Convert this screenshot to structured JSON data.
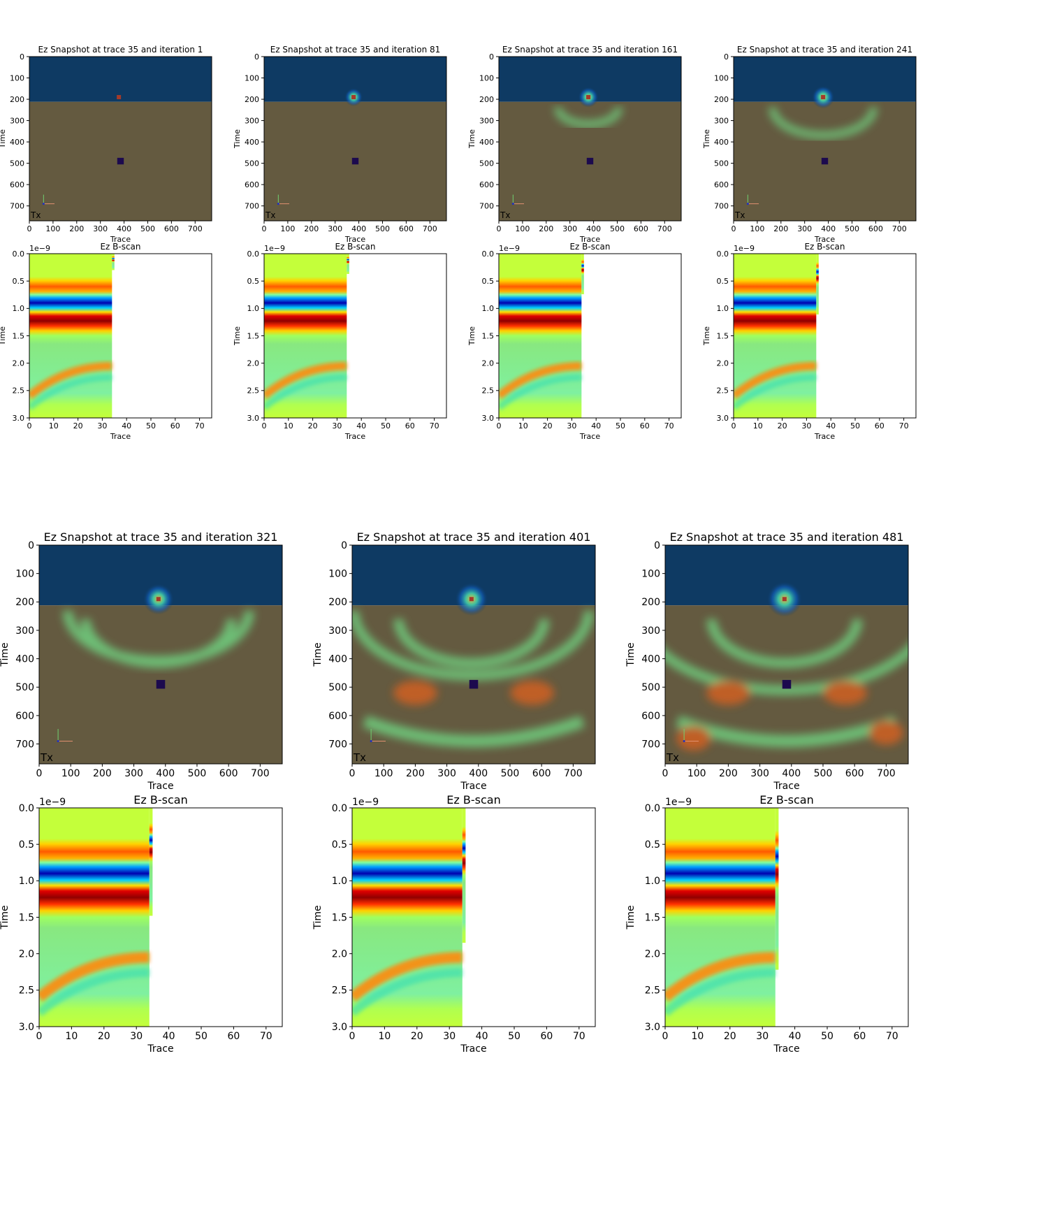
{
  "colors": {
    "air": "#0e3a63",
    "soil": "#645a40",
    "target": "#1c0a4e",
    "bscan_background": "#c4ff3a",
    "source_marker": "#a33a2a",
    "tx_label": "#dd1010"
  },
  "labels": {
    "snapshot_xlabel": "Trace",
    "snapshot_ylabel": "Time",
    "bscan_title": "Ez B-scan",
    "bscan_xlabel": "Trace",
    "bscan_ylabel": "Time",
    "bscan_exponent": "1e−9",
    "tx": "Tx"
  },
  "chart_data": [
    {
      "type": "heatmap",
      "panel": "snapshot",
      "title": "Ez Snapshot at trace 35 and iteration 1",
      "iteration": 1,
      "xlabel": "Trace",
      "ylabel": "Time",
      "xlim": [
        0,
        770
      ],
      "ylim": [
        770,
        0
      ],
      "xticks": [
        0,
        100,
        200,
        300,
        400,
        500,
        600,
        700
      ],
      "yticks": [
        0,
        100,
        200,
        300,
        400,
        500,
        600,
        700
      ],
      "air_ground_interface": 212,
      "target_center": [
        385,
        490
      ],
      "source_position": [
        378,
        190
      ]
    },
    {
      "type": "heatmap",
      "panel": "snapshot",
      "title": "Ez Snapshot at trace 35 and iteration 81",
      "iteration": 81,
      "xlabel": "Trace",
      "ylabel": "Time",
      "xlim": [
        0,
        770
      ],
      "ylim": [
        770,
        0
      ],
      "xticks": [
        0,
        100,
        200,
        300,
        400,
        500,
        600,
        700
      ],
      "yticks": [
        0,
        100,
        200,
        300,
        400,
        500,
        600,
        700
      ],
      "air_ground_interface": 212,
      "target_center": [
        385,
        490
      ],
      "source_position": [
        378,
        190
      ]
    },
    {
      "type": "heatmap",
      "panel": "snapshot",
      "title": "Ez Snapshot at trace 35 and iteration 161",
      "iteration": 161,
      "xlabel": "Trace",
      "ylabel": "Time",
      "xlim": [
        0,
        770
      ],
      "ylim": [
        770,
        0
      ],
      "xticks": [
        0,
        100,
        200,
        300,
        400,
        500,
        600,
        700
      ],
      "yticks": [
        0,
        100,
        200,
        300,
        400,
        500,
        600,
        700
      ],
      "air_ground_interface": 212,
      "target_center": [
        385,
        490
      ],
      "source_position": [
        378,
        190
      ]
    },
    {
      "type": "heatmap",
      "panel": "snapshot",
      "title": "Ez Snapshot at trace 35 and iteration 241",
      "iteration": 241,
      "xlabel": "Trace",
      "ylabel": "Time",
      "xlim": [
        0,
        770
      ],
      "ylim": [
        770,
        0
      ],
      "xticks": [
        0,
        100,
        200,
        300,
        400,
        500,
        600,
        700
      ],
      "yticks": [
        0,
        100,
        200,
        300,
        400,
        500,
        600,
        700
      ],
      "air_ground_interface": 212,
      "target_center": [
        385,
        490
      ],
      "source_position": [
        378,
        190
      ]
    },
    {
      "type": "heatmap",
      "panel": "snapshot",
      "title": "Ez Snapshot at trace 35 and iteration 321",
      "iteration": 321,
      "xlabel": "Trace",
      "ylabel": "Time",
      "xlim": [
        0,
        770
      ],
      "ylim": [
        770,
        0
      ],
      "xticks": [
        0,
        100,
        200,
        300,
        400,
        500,
        600,
        700
      ],
      "yticks": [
        0,
        100,
        200,
        300,
        400,
        500,
        600,
        700
      ],
      "air_ground_interface": 212,
      "target_center": [
        385,
        490
      ],
      "source_position": [
        378,
        190
      ]
    },
    {
      "type": "heatmap",
      "panel": "snapshot",
      "title": "Ez Snapshot at trace 35 and iteration 401",
      "iteration": 401,
      "xlabel": "Trace",
      "ylabel": "Time",
      "xlim": [
        0,
        770
      ],
      "ylim": [
        770,
        0
      ],
      "xticks": [
        0,
        100,
        200,
        300,
        400,
        500,
        600,
        700
      ],
      "yticks": [
        0,
        100,
        200,
        300,
        400,
        500,
        600,
        700
      ],
      "air_ground_interface": 212,
      "target_center": [
        385,
        490
      ],
      "source_position": [
        378,
        190
      ]
    },
    {
      "type": "heatmap",
      "panel": "snapshot",
      "title": "Ez Snapshot at trace 35 and iteration 481",
      "iteration": 481,
      "xlabel": "Trace",
      "ylabel": "Time",
      "xlim": [
        0,
        770
      ],
      "ylim": [
        770,
        0
      ],
      "xticks": [
        0,
        100,
        200,
        300,
        400,
        500,
        600,
        700
      ],
      "yticks": [
        0,
        100,
        200,
        300,
        400,
        500,
        600,
        700
      ],
      "air_ground_interface": 212,
      "target_center": [
        385,
        490
      ],
      "source_position": [
        378,
        190
      ]
    },
    {
      "type": "heatmap",
      "panel": "bscan",
      "title": "Ez B-scan",
      "xlabel": "Trace",
      "ylabel": "Time",
      "y_scale_label": "1e−9",
      "xlim": [
        0,
        75
      ],
      "ylim": [
        3.0,
        0.0
      ],
      "xticks": [
        0,
        10,
        20,
        30,
        40,
        50,
        60,
        70
      ],
      "yticks": [
        "0.0",
        "0.5",
        "1.0",
        "1.5",
        "2.0",
        "2.5",
        "3.0"
      ],
      "traces_filled": 35,
      "current_time": 0.3
    },
    {
      "type": "heatmap",
      "panel": "bscan",
      "title": "Ez B-scan",
      "xlabel": "Trace",
      "ylabel": "Time",
      "y_scale_label": "1e−9",
      "xlim": [
        0,
        75
      ],
      "ylim": [
        3.0,
        0.0
      ],
      "xticks": [
        0,
        10,
        20,
        30,
        40,
        50,
        60,
        70
      ],
      "yticks": [
        "0.0",
        "0.5",
        "1.0",
        "1.5",
        "2.0",
        "2.5",
        "3.0"
      ],
      "traces_filled": 35,
      "current_time": 0.37
    },
    {
      "type": "heatmap",
      "panel": "bscan",
      "title": "Ez B-scan",
      "xlabel": "Trace",
      "ylabel": "Time",
      "y_scale_label": "1e−9",
      "xlim": [
        0,
        75
      ],
      "ylim": [
        3.0,
        0.0
      ],
      "xticks": [
        0,
        10,
        20,
        30,
        40,
        50,
        60,
        70
      ],
      "yticks": [
        "0.0",
        "0.5",
        "1.0",
        "1.5",
        "2.0",
        "2.5",
        "3.0"
      ],
      "traces_filled": 35,
      "current_time": 0.74
    },
    {
      "type": "heatmap",
      "panel": "bscan",
      "title": "Ez B-scan",
      "xlabel": "Trace",
      "ylabel": "Time",
      "y_scale_label": "1e−9",
      "xlim": [
        0,
        75
      ],
      "ylim": [
        3.0,
        0.0
      ],
      "xticks": [
        0,
        10,
        20,
        30,
        40,
        50,
        60,
        70
      ],
      "yticks": [
        "0.0",
        "0.5",
        "1.0",
        "1.5",
        "2.0",
        "2.5",
        "3.0"
      ],
      "traces_filled": 35,
      "current_time": 1.11
    },
    {
      "type": "heatmap",
      "panel": "bscan",
      "title": "Ez B-scan",
      "xlabel": "Trace",
      "ylabel": "Time",
      "y_scale_label": "1e−9",
      "xlim": [
        0,
        75
      ],
      "ylim": [
        3.0,
        0.0
      ],
      "xticks": [
        0,
        10,
        20,
        30,
        40,
        50,
        60,
        70
      ],
      "yticks": [
        "0.0",
        "0.5",
        "1.0",
        "1.5",
        "2.0",
        "2.5",
        "3.0"
      ],
      "traces_filled": 35,
      "current_time": 1.48
    },
    {
      "type": "heatmap",
      "panel": "bscan",
      "title": "Ez B-scan",
      "xlabel": "Trace",
      "ylabel": "Time",
      "y_scale_label": "1e−9",
      "xlim": [
        0,
        75
      ],
      "ylim": [
        3.0,
        0.0
      ],
      "xticks": [
        0,
        10,
        20,
        30,
        40,
        50,
        60,
        70
      ],
      "yticks": [
        "0.0",
        "0.5",
        "1.0",
        "1.5",
        "2.0",
        "2.5",
        "3.0"
      ],
      "traces_filled": 35,
      "current_time": 1.85
    },
    {
      "type": "heatmap",
      "panel": "bscan",
      "title": "Ez B-scan",
      "xlabel": "Trace",
      "ylabel": "Time",
      "y_scale_label": "1e−9",
      "xlim": [
        0,
        75
      ],
      "ylim": [
        3.0,
        0.0
      ],
      "xticks": [
        0,
        10,
        20,
        30,
        40,
        50,
        60,
        70
      ],
      "yticks": [
        "0.0",
        "0.5",
        "1.0",
        "1.5",
        "2.0",
        "2.5",
        "3.0"
      ],
      "traces_filled": 35,
      "current_time": 2.22
    }
  ]
}
